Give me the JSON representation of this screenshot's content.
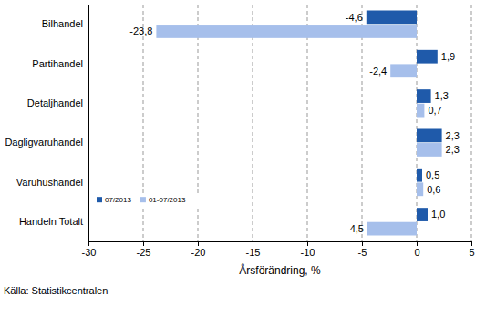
{
  "chart_data": {
    "type": "bar",
    "orientation": "horizontal",
    "categories": [
      "Bilhandel",
      "Partihandel",
      "Detaljhandel",
      "Dagligvaruhandel",
      "Varuhushandel",
      "Handeln Totalt"
    ],
    "series": [
      {
        "name": "07/2013",
        "color": "#1f5aaa",
        "values": [
          -4.6,
          1.9,
          1.3,
          2.3,
          0.5,
          1.0
        ],
        "value_labels": [
          "-4,6",
          "1,9",
          "1,3",
          "2,3",
          "0,5",
          "1,0"
        ]
      },
      {
        "name": "01-07/2013",
        "color": "#a6bfeb",
        "values": [
          -23.8,
          -2.4,
          0.7,
          2.3,
          0.6,
          -4.5
        ],
        "value_labels": [
          "-23,8",
          "-2,4",
          "0,7",
          "2,3",
          "0,6",
          "-4,5"
        ]
      }
    ],
    "xlabel": "Årsförändring, %",
    "source": "Källa: Statistikcentralen",
    "xlim": [
      -30,
      5
    ],
    "xticks": [
      -30,
      -25,
      -20,
      -15,
      -10,
      -5,
      0,
      5
    ],
    "grid": true,
    "legend": "lower left",
    "data_labels": true
  }
}
